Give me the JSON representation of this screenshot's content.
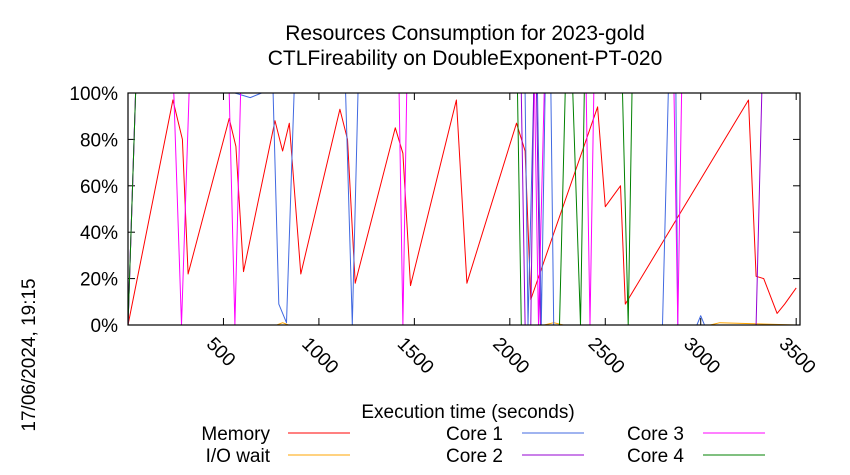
{
  "chart_data": {
    "type": "line",
    "title": "Resources Consumption for 2023-gold",
    "subtitle": "CTLFireability on DoubleExponent-PT-020",
    "xlabel": "Execution time (seconds)",
    "ylabel": "",
    "side_label": "17/06/2024, 19:15",
    "xlim": [
      0,
      3520
    ],
    "ylim": [
      0,
      100
    ],
    "x_ticks": [
      500,
      1000,
      1500,
      2000,
      2500,
      3000,
      3500
    ],
    "y_ticks": [
      0,
      20,
      40,
      60,
      80,
      100
    ],
    "y_tick_labels": [
      "0%",
      "20%",
      "40%",
      "60%",
      "80%",
      "100%"
    ],
    "grid": false,
    "legend_position": "bottom",
    "series": [
      {
        "name": "Memory",
        "color": "#ff0000",
        "points": [
          [
            0,
            0
          ],
          [
            235,
            97
          ],
          [
            285,
            80
          ],
          [
            315,
            22
          ],
          [
            530,
            89
          ],
          [
            565,
            77
          ],
          [
            605,
            23
          ],
          [
            770,
            88
          ],
          [
            810,
            75
          ],
          [
            845,
            87
          ],
          [
            905,
            22
          ],
          [
            1110,
            93
          ],
          [
            1150,
            80
          ],
          [
            1190,
            18
          ],
          [
            1400,
            85
          ],
          [
            1440,
            74
          ],
          [
            1480,
            17
          ],
          [
            1720,
            97
          ],
          [
            1775,
            18
          ],
          [
            2035,
            87
          ],
          [
            2080,
            75
          ],
          [
            2110,
            11
          ],
          [
            2460,
            94
          ],
          [
            2500,
            51
          ],
          [
            2580,
            60
          ],
          [
            2605,
            9
          ],
          [
            3250,
            97
          ],
          [
            3290,
            21
          ],
          [
            3330,
            20
          ],
          [
            3400,
            5
          ],
          [
            3440,
            9
          ],
          [
            3500,
            16
          ]
        ]
      },
      {
        "name": "I/O wait",
        "color": "#ffa500",
        "points": [
          [
            0,
            0
          ],
          [
            780,
            0
          ],
          [
            810,
            1
          ],
          [
            840,
            0
          ],
          [
            2180,
            0
          ],
          [
            2230,
            1
          ],
          [
            2280,
            0
          ],
          [
            3050,
            0
          ],
          [
            3100,
            1
          ],
          [
            3500,
            0
          ]
        ]
      },
      {
        "name": "Core 1",
        "color": "#4169e1",
        "points": [
          [
            0,
            0
          ],
          [
            40,
            100
          ],
          [
            520,
            100
          ],
          [
            560,
            100
          ],
          [
            640,
            98
          ],
          [
            700,
            100
          ],
          [
            760,
            100
          ],
          [
            790,
            9
          ],
          [
            830,
            1
          ],
          [
            870,
            100
          ],
          [
            1140,
            100
          ],
          [
            1175,
            0
          ],
          [
            1205,
            100
          ],
          [
            2080,
            100
          ],
          [
            2095,
            0
          ],
          [
            2125,
            100
          ],
          [
            2145,
            100
          ],
          [
            2165,
            0
          ],
          [
            2185,
            100
          ],
          [
            2215,
            100
          ],
          [
            2230,
            0
          ],
          [
            2800,
            0
          ],
          [
            2830,
            100
          ],
          [
            2870,
            100
          ],
          [
            2880,
            0
          ],
          [
            2980,
            0
          ],
          [
            3000,
            4
          ],
          [
            3020,
            0
          ],
          [
            3500,
            0
          ]
        ]
      },
      {
        "name": "Core 2",
        "color": "#9400d3",
        "points": [
          [
            0,
            0
          ],
          [
            40,
            100
          ],
          [
            2060,
            100
          ],
          [
            2080,
            0
          ],
          [
            2100,
            0
          ],
          [
            2110,
            0
          ],
          [
            2125,
            100
          ],
          [
            2140,
            100
          ],
          [
            2160,
            0
          ],
          [
            2980,
            0
          ],
          [
            3020,
            0
          ],
          [
            3050,
            0
          ],
          [
            3290,
            0
          ],
          [
            3320,
            100
          ],
          [
            3500,
            100
          ]
        ]
      },
      {
        "name": "Core 3",
        "color": "#ff00ff",
        "points": [
          [
            0,
            0
          ],
          [
            40,
            100
          ],
          [
            240,
            100
          ],
          [
            280,
            0
          ],
          [
            320,
            100
          ],
          [
            530,
            100
          ],
          [
            560,
            0
          ],
          [
            590,
            100
          ],
          [
            1420,
            100
          ],
          [
            1440,
            0
          ],
          [
            1460,
            100
          ],
          [
            2130,
            100
          ],
          [
            2150,
            0
          ],
          [
            2180,
            100
          ],
          [
            2400,
            100
          ],
          [
            2420,
            0
          ],
          [
            2440,
            100
          ],
          [
            2860,
            100
          ],
          [
            2880,
            0
          ],
          [
            2900,
            100
          ],
          [
            3500,
            100
          ]
        ]
      },
      {
        "name": "Core 4",
        "color": "#008000",
        "points": [
          [
            0,
            0
          ],
          [
            40,
            100
          ],
          [
            2040,
            100
          ],
          [
            2060,
            0
          ],
          [
            2260,
            0
          ],
          [
            2290,
            100
          ],
          [
            2330,
            100
          ],
          [
            2370,
            0
          ],
          [
            2390,
            100
          ],
          [
            2590,
            100
          ],
          [
            2620,
            0
          ],
          [
            2640,
            100
          ],
          [
            3500,
            100
          ]
        ]
      }
    ]
  }
}
